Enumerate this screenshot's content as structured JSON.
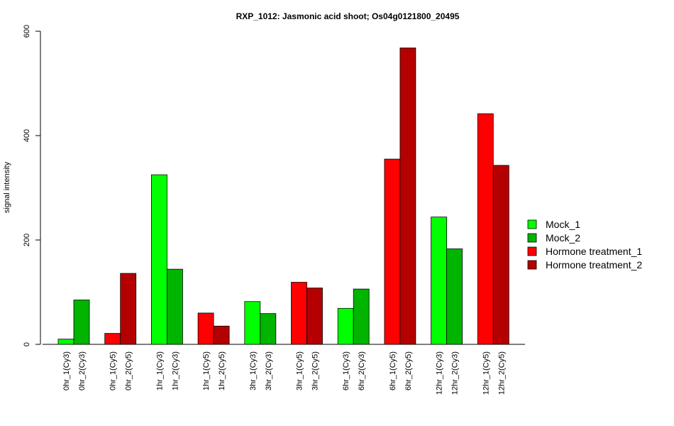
{
  "chart_data": {
    "type": "bar",
    "title": "RXP_1012: Jasmonic acid shoot; Os04g0121800_20495",
    "xlabel": "",
    "ylabel": "signal intensity",
    "ylim": [
      0,
      600
    ],
    "yticks": [
      0,
      200,
      400,
      600
    ],
    "grid": false,
    "legend_position": "right",
    "legend": [
      {
        "label": "Mock_1",
        "color": "#00ff00"
      },
      {
        "label": "Mock_2",
        "color": "#00b400"
      },
      {
        "label": "Hormone treatment_1",
        "color": "#ff0000"
      },
      {
        "label": "Hormone treatment_2",
        "color": "#b40000"
      }
    ],
    "categories": [
      "0hr_1(Cy3)",
      "0hr_2(Cy3)",
      "0hr_1(Cy5)",
      "0hr_2(Cy5)",
      "1hr_1(Cy3)",
      "1hr_2(Cy3)",
      "1hr_1(Cy5)",
      "1hr_2(Cy5)",
      "3hr_1(Cy3)",
      "3hr_2(Cy3)",
      "3hr_1(Cy5)",
      "3hr_2(Cy5)",
      "6hr_1(Cy3)",
      "6hr_2(Cy3)",
      "6hr_1(Cy5)",
      "6hr_2(Cy5)",
      "12hr_1(Cy3)",
      "12hr_2(Cy3)",
      "12hr_1(Cy5)",
      "12hr_2(Cy5)"
    ],
    "values": [
      10,
      85,
      21,
      136,
      325,
      144,
      60,
      35,
      82,
      59,
      119,
      108,
      69,
      106,
      355,
      568,
      244,
      183,
      442,
      343
    ],
    "bar_colors": [
      "#00ff00",
      "#00b400",
      "#ff0000",
      "#b40000",
      "#00ff00",
      "#00b400",
      "#ff0000",
      "#b40000",
      "#00ff00",
      "#00b400",
      "#ff0000",
      "#b40000",
      "#00ff00",
      "#00b400",
      "#ff0000",
      "#b40000",
      "#00ff00",
      "#00b400",
      "#ff0000",
      "#b40000"
    ]
  }
}
